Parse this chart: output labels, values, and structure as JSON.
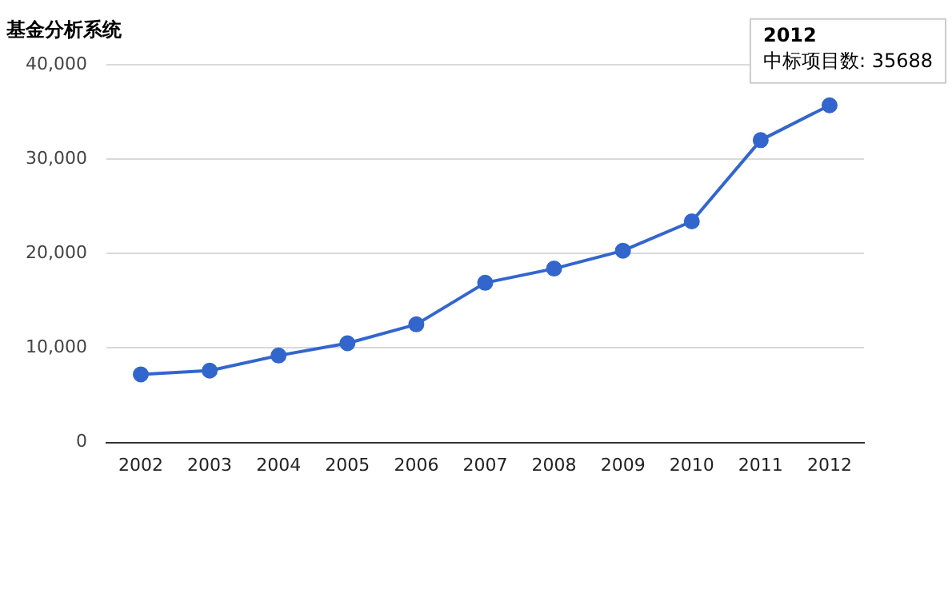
{
  "chart_data": {
    "type": "line",
    "title": "基金分析系统",
    "categories": [
      "2002",
      "2003",
      "2004",
      "2005",
      "2006",
      "2007",
      "2008",
      "2009",
      "2010",
      "2011",
      "2012"
    ],
    "series": [
      {
        "color": "#3366cc",
        "values": [
          7200,
          7600,
          9200,
          10500,
          12500,
          16900,
          18400,
          20300,
          23400,
          32000,
          35688
        ]
      }
    ],
    "ylim": [
      0,
      40000
    ],
    "yticks": [
      {
        "value": 0,
        "label": "0"
      },
      {
        "value": 10000,
        "label": "10,000"
      },
      {
        "value": 20000,
        "label": "20,000"
      },
      {
        "value": 30000,
        "label": "30,000"
      },
      {
        "value": 40000,
        "label": "40,000"
      }
    ],
    "grid": "y",
    "legend": false,
    "marker": "circle",
    "line_style": "solid",
    "annotations": [
      {
        "text": "2012\n中标项目数: 35688",
        "x": "2012",
        "y": 35688
      }
    ]
  }
}
